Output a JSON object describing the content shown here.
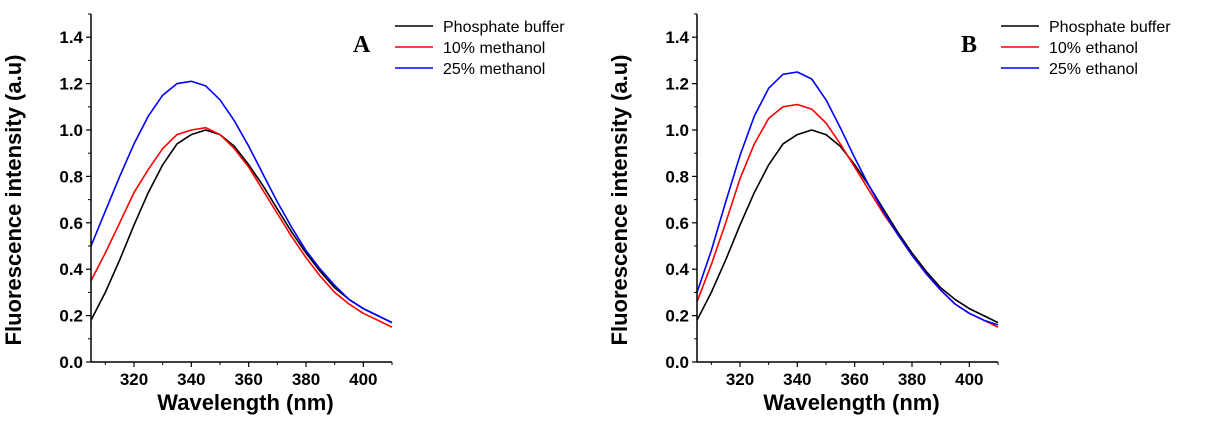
{
  "chart_data": [
    {
      "type": "line",
      "panel_label": "A",
      "xlabel": "Wavelength (nm)",
      "ylabel": "Fluorescence intensity (a.u)",
      "xlim": [
        305,
        410
      ],
      "ylim": [
        0.0,
        1.5
      ],
      "x_ticks": [
        320,
        340,
        360,
        380,
        400
      ],
      "y_ticks": [
        0.0,
        0.2,
        0.4,
        0.6,
        0.8,
        1.0,
        1.2,
        1.4
      ],
      "y_tick_labels": [
        "0.0",
        "0.2",
        "0.4",
        "0.6",
        "0.8",
        "1.0",
        "1.2",
        "1.4"
      ],
      "grid": false,
      "legend_position": "top-right",
      "x": [
        305,
        310,
        315,
        320,
        325,
        330,
        335,
        340,
        345,
        350,
        355,
        360,
        365,
        370,
        375,
        380,
        385,
        390,
        395,
        400,
        405,
        410
      ],
      "series": [
        {
          "name": "Phosphate buffer",
          "color": "#000000",
          "values": [
            0.18,
            0.3,
            0.44,
            0.59,
            0.73,
            0.85,
            0.94,
            0.98,
            1.0,
            0.98,
            0.93,
            0.85,
            0.76,
            0.66,
            0.56,
            0.47,
            0.39,
            0.32,
            0.27,
            0.23,
            0.2,
            0.17
          ]
        },
        {
          "name": "10% methanol",
          "color": "#ff0000",
          "values": [
            0.35,
            0.47,
            0.6,
            0.73,
            0.83,
            0.92,
            0.98,
            1.0,
            1.01,
            0.98,
            0.92,
            0.84,
            0.74,
            0.64,
            0.54,
            0.45,
            0.37,
            0.3,
            0.25,
            0.21,
            0.18,
            0.15
          ]
        },
        {
          "name": "25% methanol",
          "color": "#0000ff",
          "values": [
            0.5,
            0.65,
            0.8,
            0.94,
            1.06,
            1.15,
            1.2,
            1.21,
            1.19,
            1.13,
            1.04,
            0.93,
            0.81,
            0.69,
            0.58,
            0.48,
            0.4,
            0.33,
            0.27,
            0.23,
            0.2,
            0.17
          ]
        }
      ]
    },
    {
      "type": "line",
      "panel_label": "B",
      "xlabel": "Wavelength (nm)",
      "ylabel": "Fluorescence intensity (a.u)",
      "xlim": [
        305,
        410
      ],
      "ylim": [
        0.0,
        1.5
      ],
      "x_ticks": [
        320,
        340,
        360,
        380,
        400
      ],
      "y_ticks": [
        0.0,
        0.2,
        0.4,
        0.6,
        0.8,
        1.0,
        1.2,
        1.4
      ],
      "y_tick_labels": [
        "0.0",
        "0.2",
        "0.4",
        "0.6",
        "0.8",
        "1.0",
        "1.2",
        "1.4"
      ],
      "grid": false,
      "legend_position": "top-right",
      "x": [
        305,
        310,
        315,
        320,
        325,
        330,
        335,
        340,
        345,
        350,
        355,
        360,
        365,
        370,
        375,
        380,
        385,
        390,
        395,
        400,
        405,
        410
      ],
      "series": [
        {
          "name": "Phosphate buffer",
          "color": "#000000",
          "values": [
            0.18,
            0.3,
            0.44,
            0.59,
            0.73,
            0.85,
            0.94,
            0.98,
            1.0,
            0.98,
            0.93,
            0.85,
            0.76,
            0.66,
            0.56,
            0.47,
            0.39,
            0.32,
            0.27,
            0.23,
            0.2,
            0.17
          ]
        },
        {
          "name": "10% ethanol",
          "color": "#ff0000",
          "values": [
            0.26,
            0.42,
            0.6,
            0.79,
            0.94,
            1.05,
            1.1,
            1.11,
            1.09,
            1.03,
            0.94,
            0.84,
            0.74,
            0.64,
            0.55,
            0.46,
            0.38,
            0.31,
            0.25,
            0.21,
            0.18,
            0.15
          ]
        },
        {
          "name": "25% ethanol",
          "color": "#0000ff",
          "values": [
            0.3,
            0.48,
            0.69,
            0.89,
            1.06,
            1.18,
            1.24,
            1.25,
            1.22,
            1.13,
            1.01,
            0.88,
            0.76,
            0.65,
            0.55,
            0.46,
            0.38,
            0.31,
            0.25,
            0.21,
            0.18,
            0.16
          ]
        }
      ]
    }
  ]
}
